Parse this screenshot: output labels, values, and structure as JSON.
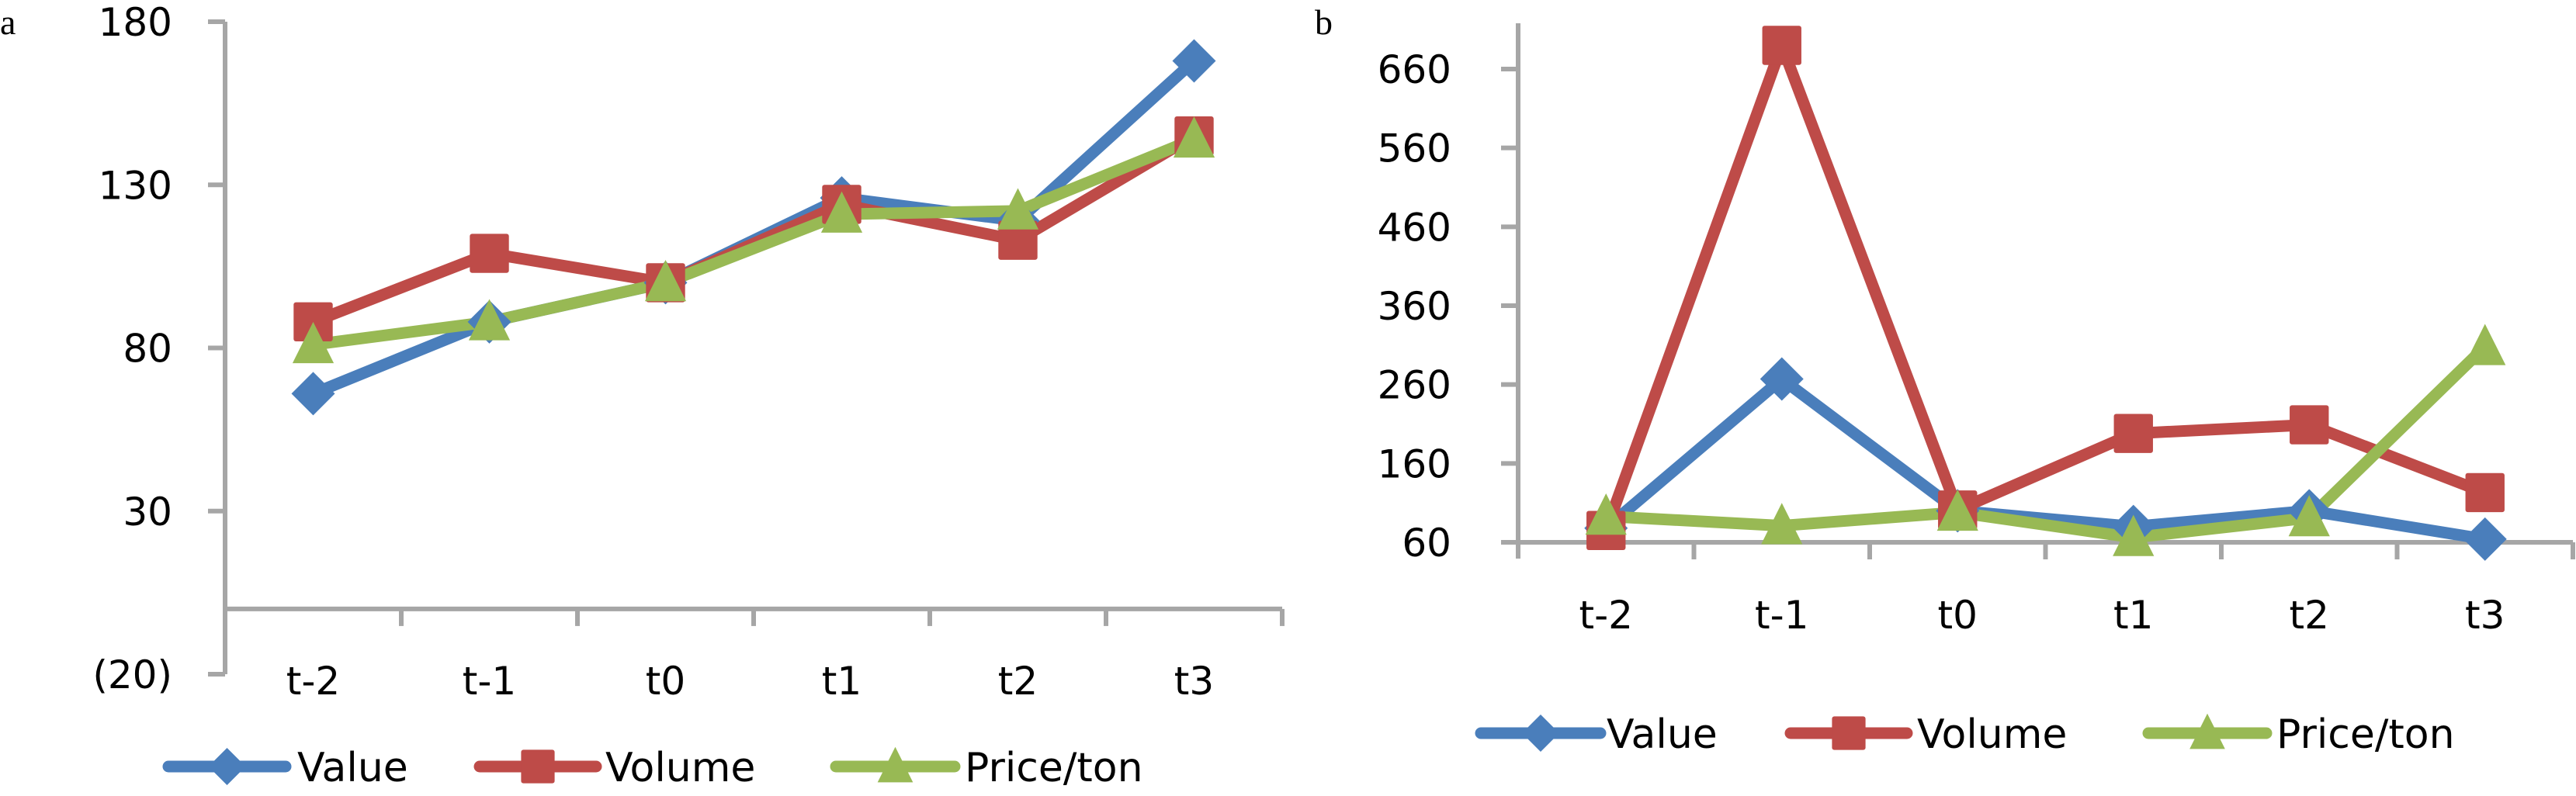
{
  "chart_data": [
    {
      "panel": "a",
      "type": "line",
      "title": "",
      "xlabel": "",
      "ylabel": "",
      "categories": [
        "t-2",
        "t-1",
        "t0",
        "t1",
        "t2",
        "t3"
      ],
      "y_ticks": [
        180,
        130,
        80,
        30,
        -20
      ],
      "y_tick_labels": [
        "180",
        "130",
        "80",
        "30",
        "(20)"
      ],
      "ylim": [
        -20,
        180
      ],
      "x_axis_crosses_at": 0,
      "grid": false,
      "legend_position": "bottom",
      "series": [
        {
          "name": "Value",
          "color": "#4a7ebb",
          "marker": "diamond",
          "values": [
            66,
            88,
            100,
            126,
            119,
            168
          ]
        },
        {
          "name": "Volume",
          "color": "#be4b48",
          "marker": "square",
          "values": [
            88,
            109,
            100,
            124,
            113,
            145
          ]
        },
        {
          "name": "Price/ton",
          "color": "#98b954",
          "marker": "triangle",
          "values": [
            81,
            88,
            100,
            121,
            122,
            144
          ]
        }
      ]
    },
    {
      "panel": "b",
      "type": "line",
      "title": "",
      "xlabel": "",
      "ylabel": "",
      "categories": [
        "t-2",
        "t-1",
        "t0",
        "t1",
        "t2",
        "t3"
      ],
      "y_ticks": [
        660,
        560,
        460,
        360,
        260,
        160,
        60
      ],
      "y_tick_labels": [
        "660",
        "560",
        "460",
        "360",
        "260",
        "160",
        "60"
      ],
      "ylim": [
        60,
        720
      ],
      "x_axis_crosses_at": 60,
      "grid": false,
      "legend_position": "bottom",
      "series": [
        {
          "name": "Value",
          "color": "#4a7ebb",
          "marker": "diamond",
          "values": [
            78,
            267,
            100,
            80,
            100,
            64
          ]
        },
        {
          "name": "Volume",
          "color": "#be4b48",
          "marker": "square",
          "values": [
            75,
            690,
            101,
            198,
            209,
            123
          ]
        },
        {
          "name": "Price/ton",
          "color": "#98b954",
          "marker": "triangle",
          "values": [
            93,
            81,
            98,
            66,
            91,
            308
          ]
        }
      ]
    }
  ]
}
